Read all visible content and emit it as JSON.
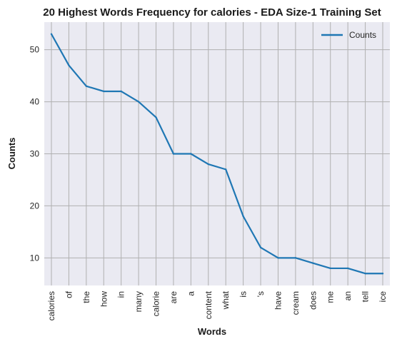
{
  "chart_data": {
    "type": "line",
    "title": "20 Highest Words Frequency for calories - EDA Size-1 Training Set",
    "xlabel": "Words",
    "ylabel": "Counts",
    "categories": [
      "calories",
      "of",
      "the",
      "how",
      "in",
      "many",
      "calorie",
      "are",
      "a",
      "content",
      "what",
      "is",
      "'s",
      "have",
      "cream",
      "does",
      "me",
      "an",
      "tell",
      "ice"
    ],
    "series": [
      {
        "name": "Counts",
        "values": [
          53,
          47,
          43,
          42,
          42,
          40,
          37,
          30,
          30,
          28,
          27,
          18,
          12,
          10,
          10,
          9,
          8,
          8,
          7,
          7
        ],
        "color": "#1f77b4"
      }
    ],
    "ylim": [
      4.7,
      55.3
    ],
    "yticks": [
      10,
      20,
      30,
      40,
      50
    ],
    "grid": true,
    "legend": "top-right",
    "background": "#eaeaf2",
    "gridcolor": "#b0b0b0"
  }
}
